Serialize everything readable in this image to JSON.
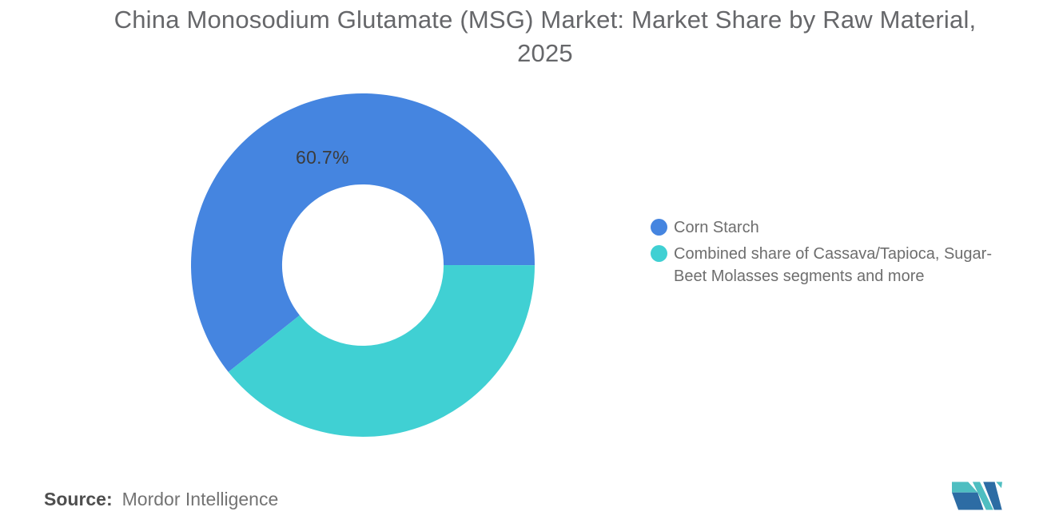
{
  "header": {
    "title_line1": "China Monosodium Glutamate (MSG) Market: Market Share by Raw Material,",
    "title_line2": "2025"
  },
  "chart_data": {
    "type": "pie",
    "donut": true,
    "title": "China Monosodium Glutamate (MSG) Market: Market Share by Raw Material, 2025",
    "inner_radius_pct": 47,
    "start_angle_deg": 231.5,
    "legend_position": "right",
    "slices": [
      {
        "label": "Corn Starch",
        "value": 60.7,
        "data_label": "60.7%",
        "color": "#4585E0"
      },
      {
        "label": "Combined share of Cassava/Tapioca, Sugar-Beet Molasses segments and more",
        "value": 39.3,
        "data_label": "",
        "color": "#40D0D3"
      }
    ]
  },
  "source": {
    "label": "Source:",
    "value": "Mordor Intelligence"
  },
  "logo": {
    "name": "mordor-intelligence-logo",
    "teal": "#4EBEC1",
    "blue": "#2D6CA4"
  }
}
